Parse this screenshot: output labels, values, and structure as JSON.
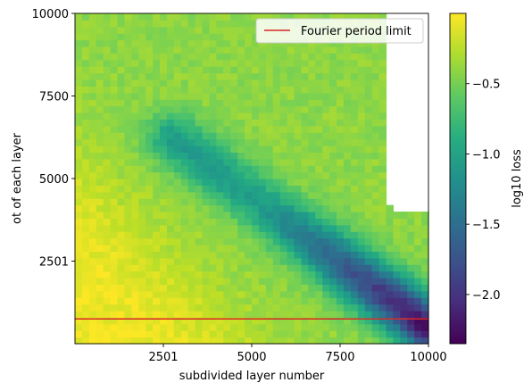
{
  "chart_data": {
    "type": "heatmap",
    "title": "",
    "xlabel": "subdivided layer number",
    "ylabel": "ot of each layer",
    "xlim": [
      0,
      10000
    ],
    "ylim": [
      0,
      10000
    ],
    "x_ticks": [
      {
        "value": 2501,
        "label": "2501"
      },
      {
        "value": 5000,
        "label": "5000"
      },
      {
        "value": 7500,
        "label": "7500"
      },
      {
        "value": 10000,
        "label": "10000"
      }
    ],
    "y_ticks": [
      {
        "value": 2501,
        "label": "2501"
      },
      {
        "value": 5000,
        "label": "5000"
      },
      {
        "value": 7500,
        "label": "7500"
      },
      {
        "value": 10000,
        "label": "10000"
      }
    ],
    "grid": false,
    "legend": {
      "placement": "top-right",
      "entries": [
        {
          "label": "Fourier period limit",
          "color": "#d62728"
        }
      ]
    },
    "hline": {
      "name": "Fourier period limit",
      "y": 750,
      "color": "#d62728"
    },
    "grid_cells": 50,
    "missing_region": "upper-right (high x, high y) cells are empty",
    "colorbar": {
      "label": "log10 loss",
      "min": -2.35,
      "max": 0.0,
      "ticks": [
        {
          "value": -0.5,
          "label": "−0.5"
        },
        {
          "value": -1.0,
          "label": "−1.0"
        },
        {
          "value": -1.5,
          "label": "−1.5"
        },
        {
          "value": -2.0,
          "label": "−2.0"
        }
      ],
      "colormap": "viridis"
    },
    "value_model": {
      "description": "log10 loss is about -0.05 near the lower-left, about -0.4 over most of the upper area, and reaches its minimum of about -2.3 along a diagonal valley running from roughly (2800, 6200) to (10000, 500)",
      "saturated_value": -0.05,
      "plateau_value": -0.4,
      "minimum_value": -2.3,
      "valley_from": [
        2800,
        6200
      ],
      "valley_to": [
        10000,
        500
      ]
    }
  }
}
